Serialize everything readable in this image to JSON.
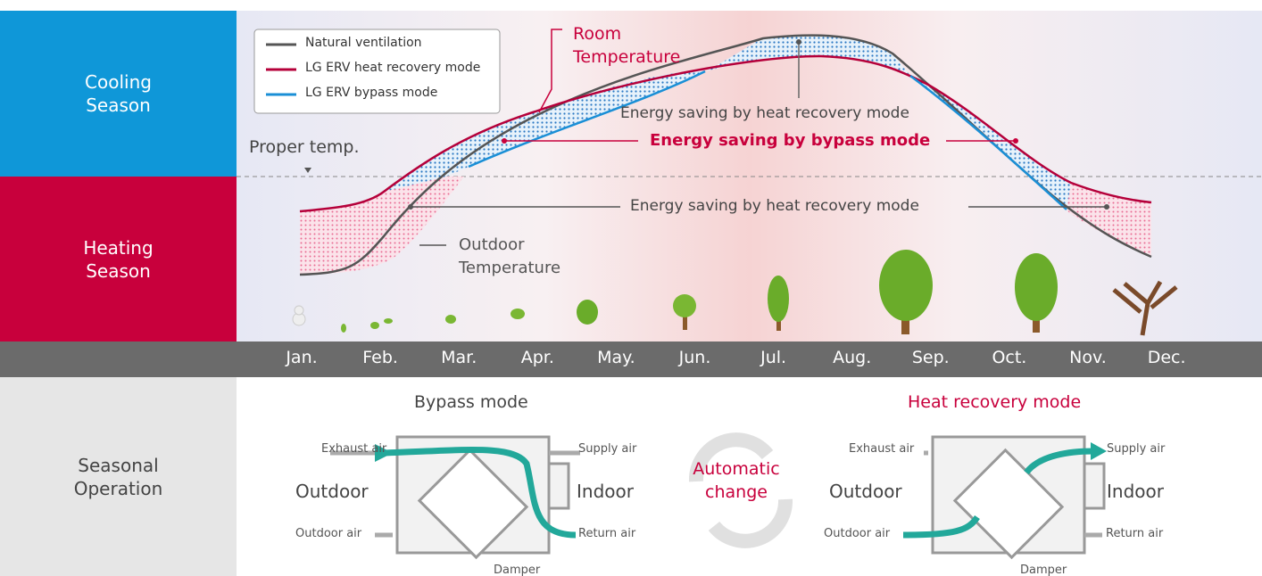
{
  "sections": {
    "cooling": "Cooling Season",
    "heating": "Heating Season",
    "operation": "Seasonal Operation"
  },
  "legend": [
    "Natural ventilation",
    "LG ERV heat recovery mode",
    "LG ERV bypass mode"
  ],
  "annotations": {
    "room_temperature": "Room Temperature",
    "proper_temp": "Proper temp.",
    "saving_heat_recovery_top": "Energy saving by heat recovery mode",
    "saving_bypass": "Energy saving by bypass mode",
    "saving_heat_recovery_bottom": "Energy saving by heat recovery mode",
    "outdoor_temperature": "Outdoor Temperature"
  },
  "months": [
    "Jan.",
    "Feb.",
    "Mar.",
    "Apr.",
    "May.",
    "Jun.",
    "Jul.",
    "Aug.",
    "Sep.",
    "Oct.",
    "Nov.",
    "Dec."
  ],
  "bypass": {
    "title": "Bypass mode",
    "exhaust": "Exhaust air",
    "supply": "Supply air",
    "outdoor": "Outdoor",
    "indoor": "Indoor",
    "outdoor_air": "Outdoor air",
    "return_air": "Return air",
    "damper": "Damper"
  },
  "heat_recovery": {
    "title": "Heat recovery mode",
    "exhaust": "Exhaust air",
    "supply": "Supply air",
    "outdoor": "Outdoor",
    "indoor": "Indoor",
    "outdoor_air": "Outdoor air",
    "return_air": "Return air",
    "damper": "Damper"
  },
  "center": "Automatic change"
}
